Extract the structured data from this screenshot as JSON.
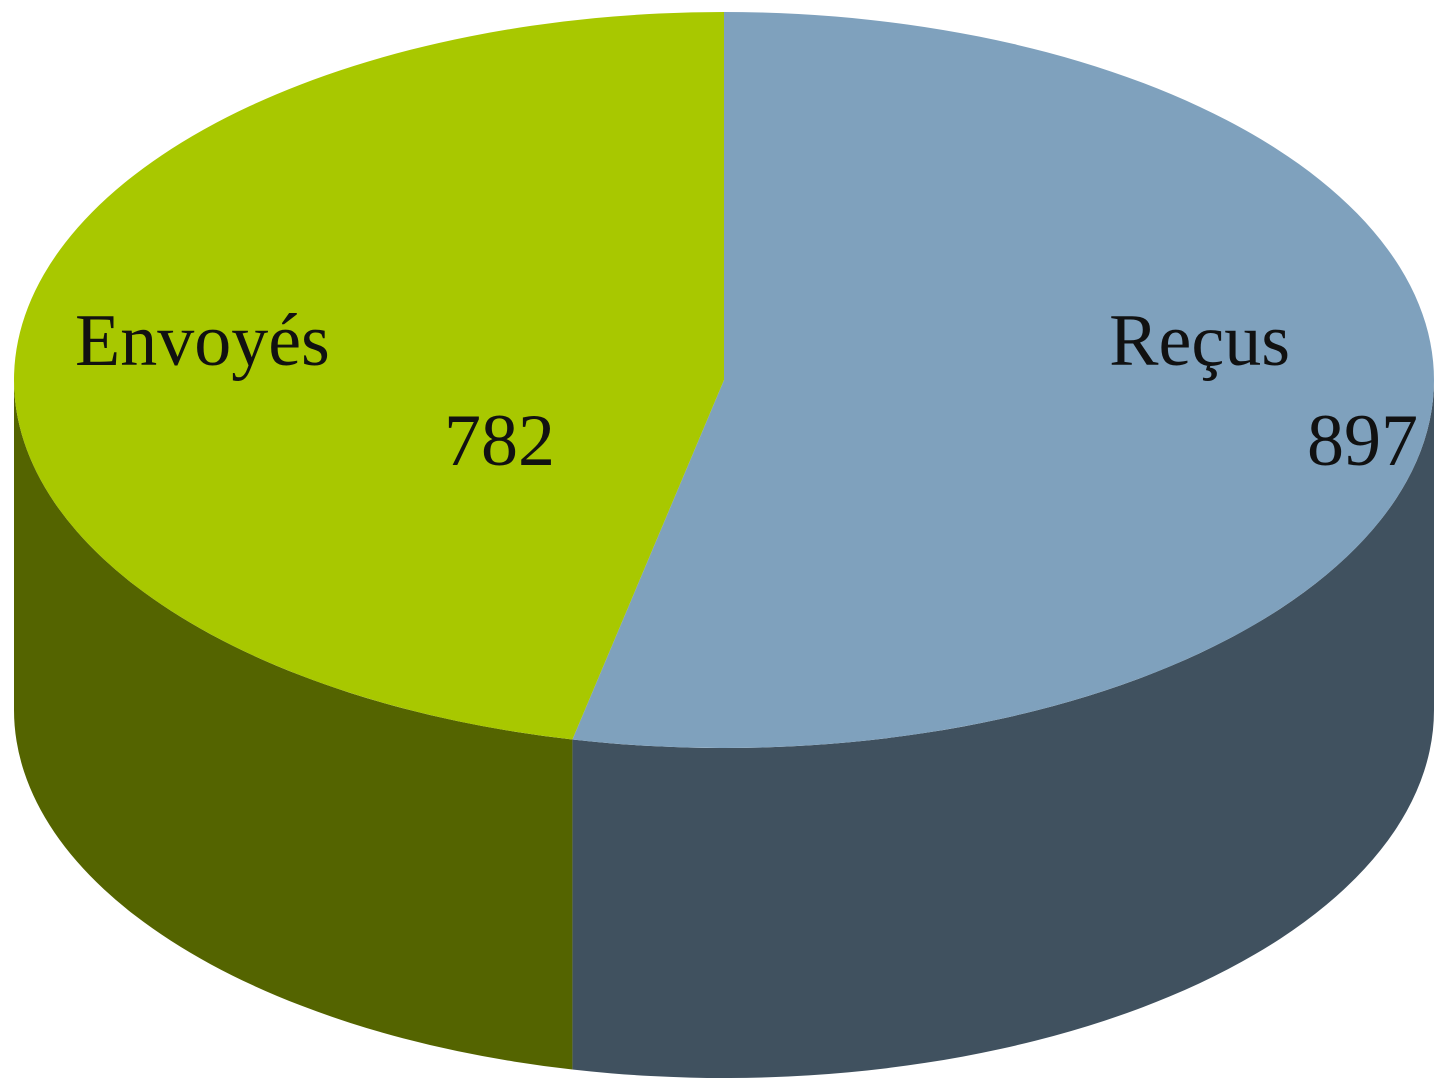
{
  "chart_data": {
    "type": "pie3d",
    "categories": [
      "Envoyés",
      "Reçus"
    ],
    "values": [
      782,
      897
    ],
    "colors": [
      "#a8c800",
      "#7fa1bd"
    ]
  }
}
